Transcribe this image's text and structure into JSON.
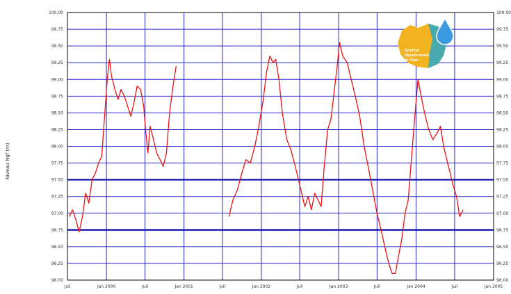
{
  "chart_data": {
    "type": "line",
    "title": "",
    "ylabel": "Niveau Ngf (m)",
    "ylim": [
      96.0,
      100.0
    ],
    "xlim": [
      "1999-07-01",
      "2005-01-01"
    ],
    "grid": true,
    "y_ticks": [
      "96.00",
      "96.25",
      "96.50",
      "96.75",
      "97.00",
      "97.25",
      "97.50",
      "97.75",
      "98.00",
      "98.25",
      "98.50",
      "98.75",
      "99.00",
      "99.25",
      "99.50",
      "99.75",
      "100.00"
    ],
    "y_ticks_right": [
      "96.00",
      "96.25",
      "96.50",
      "96.75",
      "97.00",
      "97.25",
      "97.50",
      "97.75",
      "98.00",
      "98.25",
      "98.50",
      "98.75",
      "99.00",
      "99.25",
      "99.50",
      "99.75",
      "100.00"
    ],
    "x_ticks": [
      {
        "date": "1999-07-01",
        "label": "Juil"
      },
      {
        "date": "2000-01-01",
        "label": "Jan 2000"
      },
      {
        "date": "2000-07-01",
        "label": "Juil"
      },
      {
        "date": "2001-01-01",
        "label": "Jan 2001"
      },
      {
        "date": "2001-07-01",
        "label": "Juil"
      },
      {
        "date": "2002-01-01",
        "label": "Jan 2002"
      },
      {
        "date": "2002-07-01",
        "label": "Juil"
      },
      {
        "date": "2003-01-01",
        "label": "Jan 2003"
      },
      {
        "date": "2003-07-01",
        "label": "Juil"
      },
      {
        "date": "2004-01-01",
        "label": "Jan 2004"
      },
      {
        "date": "2004-07-01",
        "label": "Juil"
      },
      {
        "date": "2005-01-01",
        "label": "Jan 2005"
      }
    ],
    "reference_lines": [
      97.5,
      96.75
    ],
    "series": [
      {
        "color": "#ee1111",
        "segments": [
          [
            [
              "1999-07-10",
              96.95
            ],
            [
              "1999-07-25",
              97.05
            ],
            [
              "1999-08-10",
              96.9
            ],
            [
              "1999-08-25",
              96.72
            ],
            [
              "1999-09-10",
              96.95
            ],
            [
              "1999-09-25",
              97.3
            ],
            [
              "1999-10-10",
              97.15
            ],
            [
              "1999-10-25",
              97.5
            ],
            [
              "1999-11-10",
              97.6
            ],
            [
              "1999-11-25",
              97.75
            ],
            [
              "1999-12-10",
              97.85
            ],
            [
              "1999-12-20",
              98.3
            ],
            [
              "2000-01-05",
              99.0
            ],
            [
              "2000-01-15",
              99.3
            ],
            [
              "2000-01-25",
              99.05
            ],
            [
              "2000-02-10",
              98.85
            ],
            [
              "2000-02-25",
              98.7
            ],
            [
              "2000-03-10",
              98.85
            ],
            [
              "2000-03-25",
              98.75
            ],
            [
              "2000-04-10",
              98.6
            ],
            [
              "2000-04-25",
              98.45
            ],
            [
              "2000-05-10",
              98.65
            ],
            [
              "2000-05-25",
              98.9
            ],
            [
              "2000-06-10",
              98.85
            ],
            [
              "2000-06-25",
              98.6
            ],
            [
              "2000-07-05",
              98.2
            ],
            [
              "2000-07-15",
              97.9
            ],
            [
              "2000-07-25",
              98.3
            ],
            [
              "2000-08-10",
              98.1
            ],
            [
              "2000-08-25",
              97.9
            ],
            [
              "2000-09-10",
              97.8
            ],
            [
              "2000-09-25",
              97.7
            ],
            [
              "2000-10-10",
              97.9
            ],
            [
              "2000-10-25",
              98.5
            ],
            [
              "2000-11-10",
              98.9
            ],
            [
              "2000-11-25",
              99.2
            ]
          ],
          [
            [
              "2001-08-01",
              96.95
            ],
            [
              "2001-08-20",
              97.2
            ],
            [
              "2001-09-10",
              97.35
            ],
            [
              "2001-10-01",
              97.6
            ],
            [
              "2001-10-20",
              97.8
            ],
            [
              "2001-11-10",
              97.75
            ],
            [
              "2001-12-01",
              98.0
            ],
            [
              "2001-12-20",
              98.3
            ],
            [
              "2002-01-10",
              98.7
            ],
            [
              "2002-01-25",
              99.1
            ],
            [
              "2002-02-10",
              99.35
            ],
            [
              "2002-02-25",
              99.25
            ],
            [
              "2002-03-10",
              99.3
            ],
            [
              "2002-03-25",
              99.0
            ],
            [
              "2002-04-10",
              98.5
            ],
            [
              "2002-05-01",
              98.1
            ],
            [
              "2002-05-20",
              97.95
            ],
            [
              "2002-06-10",
              97.7
            ],
            [
              "2002-06-25",
              97.5
            ],
            [
              "2002-07-10",
              97.3
            ],
            [
              "2002-07-25",
              97.1
            ],
            [
              "2002-08-10",
              97.25
            ],
            [
              "2002-08-25",
              97.05
            ],
            [
              "2002-09-10",
              97.3
            ],
            [
              "2002-09-25",
              97.2
            ],
            [
              "2002-10-10",
              97.1
            ],
            [
              "2002-10-25",
              97.7
            ],
            [
              "2002-11-10",
              98.25
            ],
            [
              "2002-11-25",
              98.4
            ],
            [
              "2002-12-10",
              98.8
            ],
            [
              "2002-12-25",
              99.2
            ],
            [
              "2003-01-05",
              99.55
            ],
            [
              "2003-01-20",
              99.35
            ],
            [
              "2003-02-10",
              99.25
            ],
            [
              "2003-03-01",
              99.0
            ],
            [
              "2003-03-20",
              98.75
            ],
            [
              "2003-04-10",
              98.45
            ],
            [
              "2003-05-01",
              98.0
            ],
            [
              "2003-05-20",
              97.7
            ],
            [
              "2003-06-10",
              97.35
            ],
            [
              "2003-07-01",
              97.0
            ],
            [
              "2003-07-20",
              96.75
            ],
            [
              "2003-08-10",
              96.45
            ],
            [
              "2003-08-25",
              96.25
            ],
            [
              "2003-09-10",
              96.1
            ],
            [
              "2003-09-25",
              96.1
            ],
            [
              "2003-10-10",
              96.35
            ],
            [
              "2003-10-25",
              96.6
            ],
            [
              "2003-11-10",
              97.0
            ],
            [
              "2003-11-25",
              97.2
            ],
            [
              "2003-12-10",
              97.8
            ],
            [
              "2003-12-25",
              98.4
            ],
            [
              "2004-01-10",
              99.0
            ],
            [
              "2004-01-25",
              98.75
            ],
            [
              "2004-02-10",
              98.5
            ],
            [
              "2004-03-01",
              98.25
            ],
            [
              "2004-03-20",
              98.1
            ],
            [
              "2004-04-10",
              98.2
            ],
            [
              "2004-04-25",
              98.3
            ],
            [
              "2004-05-10",
              98.0
            ],
            [
              "2004-05-25",
              97.8
            ],
            [
              "2004-06-10",
              97.6
            ],
            [
              "2004-06-25",
              97.4
            ],
            [
              "2004-07-10",
              97.25
            ],
            [
              "2004-07-25",
              96.95
            ],
            [
              "2004-08-10",
              97.05
            ]
          ]
        ]
      }
    ]
  },
  "logo": {
    "lines": [
      "Syndicat",
      "Départemental",
      "de l'Eau"
    ],
    "colors": {
      "map": "#f2b320",
      "map_right": "#2aa8c8",
      "drop": "#3a9be0"
    }
  },
  "colors": {
    "grid": "#2323c8",
    "reference": "#0000aa",
    "frame": "#000000"
  }
}
